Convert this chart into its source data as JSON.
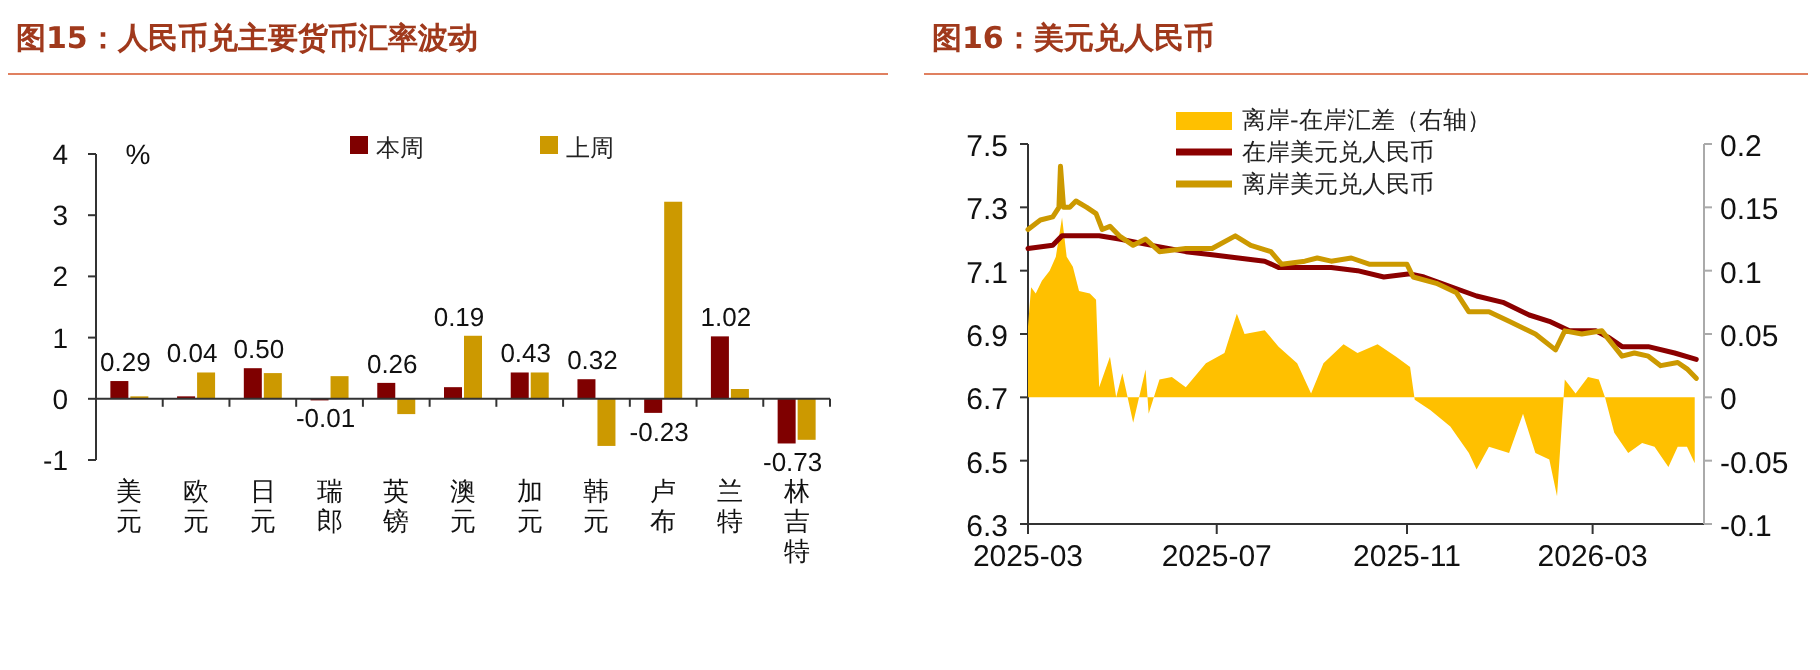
{
  "chart_data": [
    {
      "type": "bar",
      "title": "图15：人民币兑主要货币汇率波动",
      "ylabel": "%",
      "categories": [
        "美元",
        "欧元",
        "日元",
        "瑞郎",
        "英镑",
        "澳元",
        "加元",
        "韩元",
        "卢布",
        "兰特",
        "林吉特"
      ],
      "series": [
        {
          "name": "本周",
          "color": "#7f0000",
          "values": [
            0.29,
            0.04,
            0.5,
            -0.01,
            0.26,
            0.19,
            0.43,
            0.32,
            -0.23,
            1.02,
            -0.73
          ],
          "value_labels": [
            "0.29",
            "0.04",
            "0.50",
            "-0.01",
            "0.26",
            "0.19",
            "0.43",
            "0.32",
            "-0.23",
            "1.02",
            "-0.73"
          ]
        },
        {
          "name": "上周",
          "color": "#cc9900",
          "values": [
            0.04,
            0.43,
            0.42,
            0.37,
            -0.25,
            1.03,
            0.43,
            -0.77,
            3.22,
            0.16,
            -0.67
          ]
        }
      ],
      "ylim": [
        -1,
        4
      ],
      "yticks": [
        -1,
        0,
        1,
        2,
        3,
        4
      ],
      "legend": "top"
    },
    {
      "type": "line",
      "title": "图16：美元兑人民币",
      "series": [
        {
          "name": "离岸-在岸汇差（右轴）",
          "type": "area",
          "axis": "y2",
          "color": "#ffc000",
          "x": [
            "2025-03-01",
            "2025-03-03",
            "2025-03-06",
            "2025-03-10",
            "2025-03-15",
            "2025-03-19",
            "2025-03-23",
            "2025-03-26",
            "2025-03-30",
            "2025-04-03",
            "2025-04-10",
            "2025-04-14",
            "2025-04-16",
            "2025-04-23",
            "2025-04-27",
            "2025-05-01",
            "2025-05-08",
            "2025-05-16",
            "2025-05-18",
            "2025-05-25",
            "2025-06-02",
            "2025-06-11",
            "2025-06-24",
            "2025-07-06",
            "2025-07-14",
            "2025-07-19",
            "2025-08-01",
            "2025-08-10",
            "2025-08-22",
            "2025-08-31",
            "2025-09-08",
            "2025-09-21",
            "2025-09-30",
            "2025-10-13",
            "2025-10-25",
            "2025-11-03",
            "2025-11-06",
            "2025-11-16",
            "2025-11-29",
            "2025-12-11",
            "2025-12-16",
            "2025-12-24",
            "2026-01-06",
            "2026-01-15",
            "2026-01-23",
            "2026-02-01",
            "2026-02-06",
            "2026-02-11",
            "2026-02-18",
            "2026-02-26",
            "2026-03-05",
            "2026-03-09",
            "2026-03-15",
            "2026-03-24",
            "2026-04-02",
            "2026-04-10",
            "2026-04-19",
            "2026-04-25",
            "2026-05-01",
            "2026-05-06"
          ],
          "values": [
            0.056,
            0.087,
            0.082,
            0.092,
            0.1,
            0.111,
            0.142,
            0.111,
            0.103,
            0.084,
            0.082,
            0.077,
            0.008,
            0.032,
            0.0,
            0.019,
            -0.02,
            0.022,
            -0.013,
            0.014,
            0.016,
            0.008,
            0.027,
            0.035,
            0.066,
            0.05,
            0.053,
            0.04,
            0.027,
            0.003,
            0.027,
            0.042,
            0.035,
            0.042,
            0.032,
            0.024,
            -0.002,
            -0.01,
            -0.023,
            -0.044,
            -0.057,
            -0.039,
            -0.044,
            -0.013,
            -0.044,
            -0.049,
            -0.078,
            0.014,
            0.003,
            0.016,
            0.014,
            0.0,
            -0.028,
            -0.044,
            -0.036,
            -0.039,
            -0.055,
            -0.039,
            -0.039,
            -0.052
          ]
        },
        {
          "name": "在岸美元兑人民币",
          "type": "line",
          "color": "#8b0000",
          "x": [
            "2025-03-01",
            "2025-03-17",
            "2025-03-23",
            "2025-04-03",
            "2025-04-16",
            "2025-04-29",
            "2025-05-20",
            "2025-06-11",
            "2025-06-28",
            "2025-07-15",
            "2025-08-01",
            "2025-08-10",
            "2025-08-27",
            "2025-09-13",
            "2025-09-30",
            "2025-10-17",
            "2025-11-03",
            "2025-11-12",
            "2025-11-29",
            "2025-12-16",
            "2026-01-02",
            "2026-01-19",
            "2026-02-01",
            "2026-02-14",
            "2026-03-03",
            "2026-03-11",
            "2026-03-20",
            "2026-04-06",
            "2026-04-23",
            "2026-05-07"
          ],
          "values": [
            7.17,
            7.18,
            7.21,
            7.21,
            7.21,
            7.2,
            7.18,
            7.16,
            7.15,
            7.14,
            7.13,
            7.11,
            7.11,
            7.11,
            7.1,
            7.08,
            7.09,
            7.08,
            7.05,
            7.02,
            7.0,
            6.96,
            6.94,
            6.91,
            6.91,
            6.89,
            6.86,
            6.86,
            6.84,
            6.82
          ]
        },
        {
          "name": "离岸美元兑人民币",
          "type": "line",
          "color": "#cc9900",
          "x": [
            "2025-03-01",
            "2025-03-09",
            "2025-03-17",
            "2025-03-21",
            "2025-03-22",
            "2025-03-24",
            "2025-03-28",
            "2025-04-01",
            "2025-04-08",
            "2025-04-14",
            "2025-04-18",
            "2025-04-23",
            "2025-04-29",
            "2025-05-08",
            "2025-05-16",
            "2025-05-25",
            "2025-06-11",
            "2025-06-28",
            "2025-07-13",
            "2025-07-23",
            "2025-08-05",
            "2025-08-12",
            "2025-08-27",
            "2025-09-04",
            "2025-09-13",
            "2025-09-26",
            "2025-10-08",
            "2025-10-17",
            "2025-11-01",
            "2025-11-05",
            "2025-11-20",
            "2025-12-03",
            "2025-12-11",
            "2025-12-24",
            "2026-01-06",
            "2026-01-23",
            "2026-02-05",
            "2026-02-11",
            "2026-02-22",
            "2026-03-07",
            "2026-03-20",
            "2026-03-28",
            "2026-04-06",
            "2026-04-14",
            "2026-04-25",
            "2026-05-01",
            "2026-05-07"
          ],
          "values": [
            7.23,
            7.26,
            7.27,
            7.3,
            7.43,
            7.3,
            7.3,
            7.32,
            7.3,
            7.28,
            7.23,
            7.24,
            7.21,
            7.18,
            7.2,
            7.16,
            7.17,
            7.17,
            7.21,
            7.18,
            7.16,
            7.12,
            7.13,
            7.14,
            7.13,
            7.14,
            7.12,
            7.12,
            7.12,
            7.08,
            7.06,
            7.03,
            6.97,
            6.97,
            6.94,
            6.9,
            6.85,
            6.91,
            6.9,
            6.91,
            6.83,
            6.84,
            6.83,
            6.8,
            6.81,
            6.79,
            6.76
          ]
        }
      ],
      "xlim": [
        "2025-03-01",
        "2026-05-12"
      ],
      "xticks": [
        "2025-03",
        "2025-07",
        "2025-11",
        "2026-03"
      ],
      "ylim": [
        6.3,
        7.5
      ],
      "yticks": [
        6.3,
        6.5,
        6.7,
        6.9,
        7.1,
        7.3,
        7.5
      ],
      "y2lim": [
        -0.1,
        0.2
      ],
      "y2ticks": [
        -0.1,
        -0.05,
        0,
        0.05,
        0.1,
        0.15,
        0.2
      ],
      "legend": "top"
    }
  ]
}
